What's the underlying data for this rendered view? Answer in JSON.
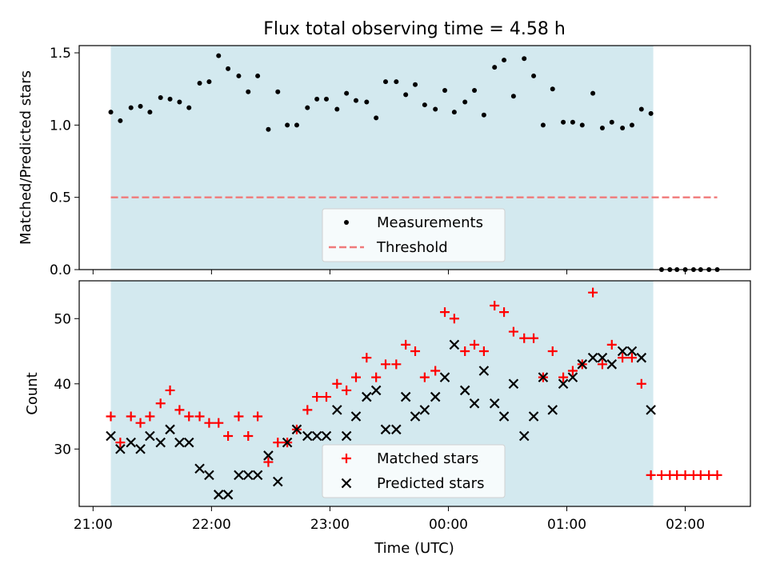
{
  "figure": {
    "title": "Flux total observing time = 4.58 h",
    "xlabel": "Time (UTC)",
    "x_tick_labels": [
      "21:00",
      "22:00",
      "23:00",
      "00:00",
      "01:00",
      "02:00"
    ],
    "x_tick_positions_hours": [
      21,
      22,
      23,
      24,
      25,
      26
    ],
    "xlim_hours": [
      20.883,
      26.55
    ],
    "shaded_span_hours": [
      21.15,
      25.73
    ],
    "shade_color": "#d3e9ef"
  },
  "chart_data": [
    {
      "type": "scatter",
      "ylabel": "Matched/Predicted stars",
      "ylim": [
        0,
        1.55
      ],
      "y_tick_labels": [
        "0.0",
        "0.5",
        "1.0",
        "1.5"
      ],
      "y_ticks": [
        0,
        0.5,
        1.0,
        1.5
      ],
      "legend_position": "lower-center",
      "series": [
        {
          "name": "Measurements",
          "marker": "dot",
          "color": "#000000",
          "x": [
            21.15,
            21.23,
            21.32,
            21.4,
            21.48,
            21.57,
            21.65,
            21.73,
            21.81,
            21.9,
            21.98,
            22.06,
            22.14,
            22.23,
            22.31,
            22.39,
            22.48,
            22.56,
            22.64,
            22.72,
            22.81,
            22.89,
            22.97,
            23.06,
            23.14,
            23.22,
            23.31,
            23.39,
            23.47,
            23.56,
            23.64,
            23.72,
            23.8,
            23.89,
            23.97,
            24.05,
            24.14,
            24.22,
            24.3,
            24.39,
            24.47,
            24.55,
            24.64,
            24.72,
            24.8,
            24.88,
            24.97,
            25.05,
            25.13,
            25.22,
            25.3,
            25.38,
            25.47,
            25.55,
            25.63,
            25.71,
            25.8,
            25.87,
            25.93,
            26.0,
            26.07,
            26.13,
            26.2,
            26.27
          ],
          "y": [
            1.09,
            1.03,
            1.12,
            1.13,
            1.09,
            1.19,
            1.18,
            1.16,
            1.12,
            1.29,
            1.3,
            1.48,
            1.39,
            1.34,
            1.23,
            1.34,
            0.97,
            1.23,
            1.0,
            1.0,
            1.12,
            1.18,
            1.18,
            1.11,
            1.22,
            1.17,
            1.16,
            1.05,
            1.3,
            1.3,
            1.21,
            1.28,
            1.14,
            1.11,
            1.24,
            1.09,
            1.16,
            1.24,
            1.07,
            1.4,
            1.45,
            1.2,
            1.46,
            1.34,
            1.0,
            1.25,
            1.02,
            1.02,
            1.0,
            1.22,
            0.98,
            1.02,
            0.98,
            1.0,
            1.11,
            1.08,
            0,
            0,
            0,
            0,
            0,
            0,
            0,
            0
          ]
        },
        {
          "name": "Threshold",
          "marker": "dashed-line",
          "color": "#f07a7a",
          "x": [
            21.15,
            26.27
          ],
          "y": [
            0.5,
            0.5
          ]
        }
      ]
    },
    {
      "type": "scatter",
      "ylabel": "Count",
      "ylim": [
        21.2,
        55.8
      ],
      "y_tick_labels": [
        "30",
        "40",
        "50"
      ],
      "y_ticks": [
        30,
        40,
        50
      ],
      "legend_position": "lower-center",
      "series": [
        {
          "name": "Matched stars",
          "marker": "plus",
          "color": "#ff0000",
          "x": [
            21.15,
            21.23,
            21.32,
            21.4,
            21.48,
            21.57,
            21.65,
            21.73,
            21.81,
            21.9,
            21.98,
            22.06,
            22.14,
            22.23,
            22.31,
            22.39,
            22.48,
            22.56,
            22.64,
            22.72,
            22.81,
            22.89,
            22.97,
            23.06,
            23.14,
            23.22,
            23.31,
            23.39,
            23.47,
            23.56,
            23.64,
            23.72,
            23.8,
            23.89,
            23.97,
            24.05,
            24.14,
            24.22,
            24.3,
            24.39,
            24.47,
            24.55,
            24.64,
            24.72,
            24.8,
            24.88,
            24.97,
            25.05,
            25.13,
            25.22,
            25.3,
            25.38,
            25.47,
            25.55,
            25.63,
            25.71,
            25.8,
            25.87,
            25.93,
            26.0,
            26.07,
            26.13,
            26.2,
            26.27
          ],
          "y": [
            35,
            31,
            35,
            34,
            35,
            37,
            39,
            36,
            35,
            35,
            34,
            34,
            32,
            35,
            32,
            35,
            28,
            31,
            31,
            33,
            36,
            38,
            38,
            40,
            39,
            41,
            44,
            41,
            43,
            43,
            46,
            45,
            41,
            42,
            51,
            50,
            45,
            46,
            45,
            52,
            51,
            48,
            47,
            47,
            41,
            45,
            41,
            42,
            43,
            54,
            43,
            46,
            44,
            44,
            40,
            26,
            26,
            26,
            26,
            26,
            26,
            26,
            26,
            26
          ],
          "x_note": ""
        },
        {
          "name": "Predicted stars",
          "marker": "x",
          "color": "#000000",
          "x": [
            21.15,
            21.23,
            21.32,
            21.4,
            21.48,
            21.57,
            21.65,
            21.73,
            21.81,
            21.9,
            21.98,
            22.06,
            22.14,
            22.23,
            22.31,
            22.39,
            22.48,
            22.56,
            22.64,
            22.72,
            22.81,
            22.89,
            22.97,
            23.06,
            23.14,
            23.22,
            23.31,
            23.39,
            23.47,
            23.56,
            23.64,
            23.72,
            23.8,
            23.89,
            23.97,
            24.05,
            24.14,
            24.22,
            24.3,
            24.39,
            24.47,
            24.55,
            24.64,
            24.72,
            24.8,
            24.88,
            24.97,
            25.05,
            25.13,
            25.22,
            25.3,
            25.38,
            25.47,
            25.55,
            25.63,
            25.71
          ],
          "y": [
            32,
            30,
            31,
            30,
            32,
            31,
            33,
            31,
            31,
            27,
            26,
            23,
            23,
            26,
            26,
            26,
            29,
            25,
            31,
            33,
            32,
            32,
            32,
            36,
            32,
            35,
            38,
            39,
            33,
            33,
            38,
            35,
            36,
            38,
            41,
            46,
            39,
            37,
            42,
            37,
            35,
            40,
            32,
            35,
            41,
            36,
            40,
            41,
            43,
            44,
            44,
            43,
            45,
            45,
            44,
            36
          ]
        }
      ]
    }
  ]
}
